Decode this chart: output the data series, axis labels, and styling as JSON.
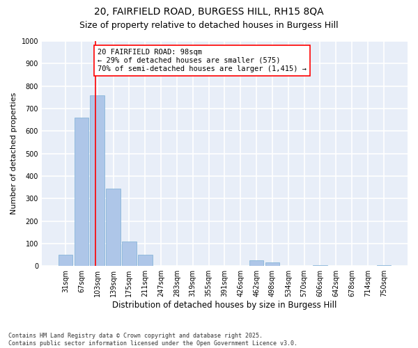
{
  "title_line1": "20, FAIRFIELD ROAD, BURGESS HILL, RH15 8QA",
  "title_line2": "Size of property relative to detached houses in Burgess Hill",
  "xlabel": "Distribution of detached houses by size in Burgess Hill",
  "ylabel": "Number of detached properties",
  "footnote": "Contains HM Land Registry data © Crown copyright and database right 2025.\nContains public sector information licensed under the Open Government Licence v3.0.",
  "bar_labels": [
    "31sqm",
    "67sqm",
    "103sqm",
    "139sqm",
    "175sqm",
    "211sqm",
    "247sqm",
    "283sqm",
    "319sqm",
    "355sqm",
    "391sqm",
    "426sqm",
    "462sqm",
    "498sqm",
    "534sqm",
    "570sqm",
    "606sqm",
    "642sqm",
    "678sqm",
    "714sqm",
    "750sqm"
  ],
  "bar_values": [
    50,
    660,
    760,
    345,
    110,
    50,
    0,
    0,
    0,
    0,
    0,
    0,
    25,
    15,
    0,
    0,
    5,
    0,
    0,
    0,
    5
  ],
  "bar_color": "#aec6e8",
  "bar_edge_color": "#7aafd4",
  "vline_pos": 1.88,
  "annotation_text": "20 FAIRFIELD ROAD: 98sqm\n← 29% of detached houses are smaller (575)\n70% of semi-detached houses are larger (1,415) →",
  "annotation_box_color": "white",
  "annotation_box_edge_color": "red",
  "vline_color": "red",
  "ylim": [
    0,
    1000
  ],
  "yticks": [
    0,
    100,
    200,
    300,
    400,
    500,
    600,
    700,
    800,
    900,
    1000
  ],
  "background_color": "#e8eef8",
  "grid_color": "white",
  "title1_fontsize": 10,
  "title2_fontsize": 9,
  "xlabel_fontsize": 8.5,
  "ylabel_fontsize": 8,
  "tick_fontsize": 7,
  "annotation_fontsize": 7.5,
  "footnote_fontsize": 6
}
